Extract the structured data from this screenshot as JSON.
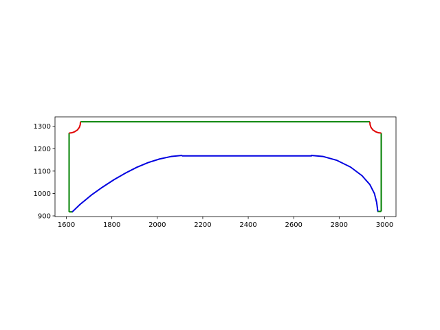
{
  "chart_data": {
    "type": "line",
    "title": "",
    "xlabel": "",
    "ylabel": "",
    "xlim": [
      1550,
      3050
    ],
    "ylim": [
      897,
      1342
    ],
    "x_ticks": [
      1600,
      1800,
      2000,
      2200,
      2400,
      2600,
      2800,
      3000
    ],
    "y_ticks": [
      900,
      1000,
      1100,
      1200,
      1300
    ],
    "x_tick_labels": [
      "1600",
      "1800",
      "2000",
      "2200",
      "2400",
      "2600",
      "2800",
      "3000"
    ],
    "y_tick_labels": [
      "900",
      "1000",
      "1100",
      "1200",
      "1300"
    ],
    "grid": false,
    "legend": "none",
    "series": [
      {
        "color": "#008000",
        "segments": [
          {
            "x": [
              1612,
              1612
            ],
            "y": [
              918,
              1270
            ]
          },
          {
            "x": [
              1612,
              1628
            ],
            "y": [
              918,
              918
            ]
          },
          {
            "x": [
              1662,
              2935
            ],
            "y": [
              1320,
              1320
            ]
          },
          {
            "x": [
              2985,
              2985
            ],
            "y": [
              920,
              1270
            ]
          },
          {
            "x": [
              2968,
              2985
            ],
            "y": [
              920,
              920
            ]
          }
        ]
      },
      {
        "color": "#e00000",
        "segments": [
          {
            "x": [
              1612,
              1624,
              1637,
              1649,
              1657,
              1661,
              1662
            ],
            "y": [
              1270,
              1271,
              1276,
              1284,
              1295,
              1307,
              1320
            ]
          },
          {
            "x": [
              2935,
              2936,
              2940,
              2948,
              2960,
              2973,
              2985
            ],
            "y": [
              1320,
              1307,
              1295,
              1284,
              1276,
              1271,
              1270
            ]
          }
        ]
      },
      {
        "color": "#0000e0",
        "segments": [
          {
            "x": [
              1626,
              1660,
              1710,
              1760,
              1810,
              1860,
              1910,
              1960,
              2010,
              2060,
              2110
            ],
            "y": [
              918,
              951,
              993,
              1029,
              1062,
              1091,
              1117,
              1138,
              1154,
              1165,
              1170
            ]
          },
          {
            "x": [
              2108,
              2680
            ],
            "y": [
              1168,
              1168
            ]
          },
          {
            "x": [
              2675,
              2730,
              2790,
              2850,
              2900,
              2935,
              2955,
              2965,
              2970
            ],
            "y": [
              1170,
              1165,
              1148,
              1118,
              1080,
              1040,
              1000,
              960,
              920
            ]
          }
        ]
      }
    ]
  }
}
